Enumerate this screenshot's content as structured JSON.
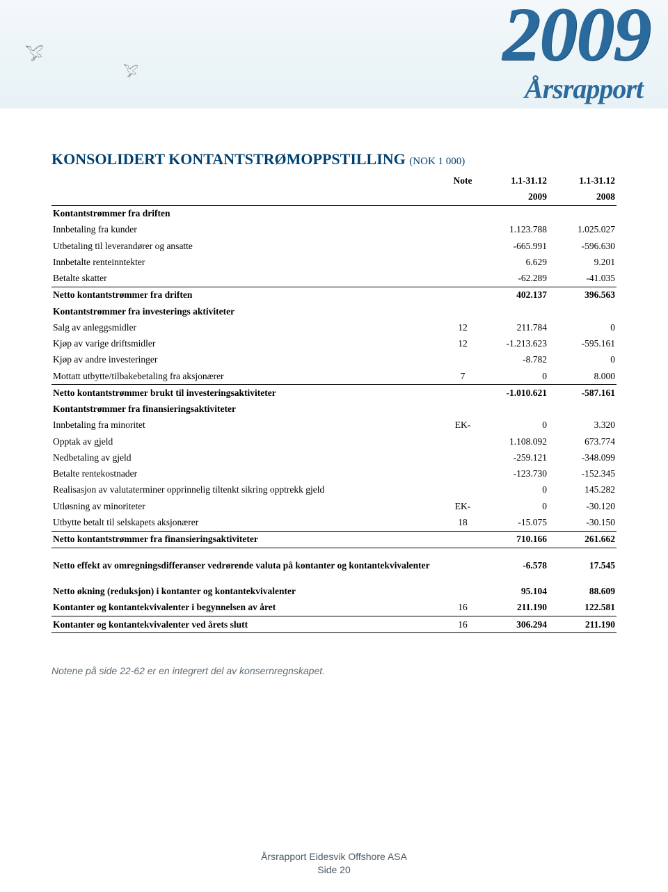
{
  "banner": {
    "year": "2009",
    "subtitle": "Årsrapport",
    "bg_gradient_top": "#f4f8fa",
    "bg_gradient_bottom": "#e8f2f6",
    "text_color": "#2a6a9c"
  },
  "title": {
    "main": "KONSOLIDERT KONTANTSTRØMOPPSTILLING",
    "sub": "(NOK 1 000)",
    "color": "#004070"
  },
  "columns": {
    "note": "Note",
    "period1_line1": "1.1-31.12",
    "period1_line2": "2009",
    "period2_line1": "1.1-31.12",
    "period2_line2": "2008"
  },
  "rows": [
    {
      "label": "Kontantstrømmer fra driften",
      "bold": true
    },
    {
      "label": "Innbetaling fra kunder",
      "v1": "1.123.788",
      "v2": "1.025.027"
    },
    {
      "label": "Utbetaling til leverandører og ansatte",
      "v1": "-665.991",
      "v2": "-596.630"
    },
    {
      "label": "Innbetalte renteinntekter",
      "v1": "6.629",
      "v2": "9.201"
    },
    {
      "label": "Betalte skatter",
      "v1": "-62.289",
      "v2": "-41.035"
    },
    {
      "label": "Netto kontantstrømmer fra driften",
      "bold": true,
      "v1": "402.137",
      "v2": "396.563",
      "sum": true
    },
    {
      "label": "Kontantstrømmer fra investerings aktiviteter",
      "bold": true
    },
    {
      "label": "Salg av anleggsmidler",
      "note": "12",
      "v1": "211.784",
      "v2": "0"
    },
    {
      "label": "Kjøp av varige driftsmidler",
      "note": "12",
      "v1": "-1.213.623",
      "v2": "-595.161"
    },
    {
      "label": "Kjøp av andre investeringer",
      "v1": "-8.782",
      "v2": "0"
    },
    {
      "label": "Mottatt utbytte/tilbakebetaling fra aksjonærer",
      "note": "7",
      "v1": "0",
      "v2": "8.000"
    },
    {
      "label": "Netto kontantstrømmer brukt til investeringsaktiviteter",
      "bold": true,
      "v1": "-1.010.621",
      "v2": "-587.161",
      "sum": true
    },
    {
      "label": "Kontantstrømmer fra finansieringsaktiviteter",
      "bold": true
    },
    {
      "label": "Innbetaling fra minoritet",
      "note": "EK-",
      "v1": "0",
      "v2": "3.320"
    },
    {
      "label": "Opptak av gjeld",
      "v1": "1.108.092",
      "v2": "673.774"
    },
    {
      "label": "Nedbetaling av gjeld",
      "v1": "-259.121",
      "v2": "-348.099"
    },
    {
      "label": "Betalte rentekostnader",
      "v1": "-123.730",
      "v2": "-152.345"
    },
    {
      "label": "Realisasjon av valutaterminer opprinnelig tiltenkt sikring opptrekk gjeld",
      "v1": "0",
      "v2": "145.282"
    },
    {
      "label": "Utløsning av minoriteter",
      "note": "EK-",
      "v1": "0",
      "v2": "-30.120"
    },
    {
      "label": "Utbytte betalt til selskapets aksjonærer",
      "note": "18",
      "v1": "-15.075",
      "v2": "-30.150"
    },
    {
      "label": "Netto kontantstrømmer fra finansieringsaktiviteter",
      "bold": true,
      "v1": "710.166",
      "v2": "261.662",
      "sum": true,
      "sum_bottom": true
    },
    {
      "gap": true
    },
    {
      "label": "Netto effekt av omregningsdifferanser vedrørende valuta på kontanter og kontantekvivalenter",
      "bold": true,
      "v1": "-6.578",
      "v2": "17.545"
    },
    {
      "gap": true
    },
    {
      "label": "Netto økning (reduksjon) i kontanter og kontantekvivalenter",
      "bold": true,
      "v1": "95.104",
      "v2": "88.609"
    },
    {
      "label": "Kontanter og kontantekvivalenter i begynnelsen av året",
      "bold": true,
      "note": "16",
      "v1": "211.190",
      "v2": "122.581"
    },
    {
      "label": "Kontanter og kontantekvivalenter ved årets slutt",
      "bold": true,
      "note": "16",
      "v1": "306.294",
      "v2": "211.190",
      "sum": true,
      "sum_bottom": true
    }
  ],
  "footnote": "Notene på side 22-62 er en integrert del av konsernregnskapet.",
  "page_footer": {
    "line1": "Årsrapport Eidesvik Offshore ASA",
    "line2": "Side 20"
  },
  "style": {
    "body_font": "Times New Roman",
    "title_fontsize": 22,
    "table_fontsize": 13.5,
    "footnote_color": "#5a6a75"
  }
}
